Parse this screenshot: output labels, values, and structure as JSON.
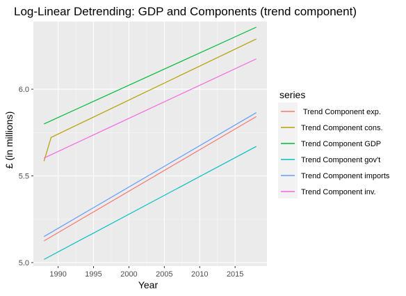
{
  "chart_data": {
    "type": "line",
    "title": "Log-Linear Detrending: GDP and Components (trend component)",
    "xlabel": "Year",
    "ylabel": "£ (in millions)",
    "xlim": [
      1986.5,
      2019.5
    ],
    "ylim": [
      4.98,
      6.39
    ],
    "x_ticks": [
      1990,
      1995,
      2000,
      2005,
      2010,
      2015
    ],
    "y_ticks": [
      5.0,
      5.5,
      6.0
    ],
    "y_tick_labels": [
      "5.0",
      "5.5",
      "6.0"
    ],
    "grid": true,
    "legend": {
      "title": "series",
      "position": "right"
    },
    "series": [
      {
        "name": " Trend Component exp.",
        "color": "#F8766D",
        "x": [
          1988,
          2018
        ],
        "y": [
          5.125,
          5.842
        ]
      },
      {
        "name": "Trend Component cons.",
        "color": "#B79F00",
        "x": [
          1988,
          1989,
          2018
        ],
        "y": [
          5.585,
          5.722,
          6.29
        ]
      },
      {
        "name": "Trend Component GDP",
        "color": "#00BA38",
        "x": [
          1988,
          2018
        ],
        "y": [
          5.8,
          6.358
        ]
      },
      {
        "name": "Trend Component gov't",
        "color": "#00BFC4",
        "x": [
          1988,
          2018
        ],
        "y": [
          5.018,
          5.67
        ]
      },
      {
        "name": "Trend Component imports",
        "color": "#619CFF",
        "x": [
          1988,
          2018
        ],
        "y": [
          5.15,
          5.865
        ]
      },
      {
        "name": "Trend Component inv.",
        "color": "#F564E3",
        "x": [
          1988,
          2018
        ],
        "y": [
          5.603,
          6.175
        ]
      }
    ]
  }
}
